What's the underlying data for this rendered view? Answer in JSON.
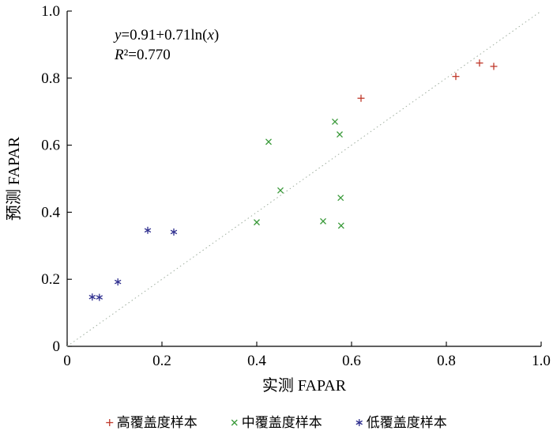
{
  "chart_data": {
    "type": "scatter",
    "title": "",
    "xlabel": "实测 FAPAR",
    "ylabel": "预测 FAPAR",
    "xlim": [
      0,
      1.0
    ],
    "ylim": [
      0,
      1.0
    ],
    "xticks": [
      0,
      0.2,
      0.4,
      0.6,
      0.8,
      1.0
    ],
    "yticks": [
      0,
      0.2,
      0.4,
      0.6,
      0.8,
      1.0
    ],
    "xtick_labels": [
      "0",
      "0.2",
      "0.4",
      "0.6",
      "0.8",
      "1.0"
    ],
    "ytick_labels": [
      "0",
      "0.2",
      "0.4",
      "0.6",
      "0.8",
      "1.0"
    ],
    "grid": false,
    "legend_position": "bottom",
    "annotation": {
      "line1_runs": [
        {
          "t": "y",
          "i": true
        },
        {
          "t": "=0.91+0.71ln(",
          "i": false
        },
        {
          "t": "x",
          "i": true
        },
        {
          "t": ")",
          "i": false
        }
      ],
      "line2_runs": [
        {
          "t": "R",
          "i": true
        },
        {
          "t": "²=0.770",
          "i": false
        }
      ]
    },
    "reference_line": {
      "style": "dotted",
      "from": [
        0,
        0
      ],
      "to": [
        1.0,
        1.0
      ],
      "color": "#9fae9f"
    },
    "series": [
      {
        "name": "高覆盖度样本",
        "marker": "plus",
        "color": "#c0392b",
        "points": [
          [
            0.62,
            0.74
          ],
          [
            0.82,
            0.805
          ],
          [
            0.87,
            0.845
          ],
          [
            0.9,
            0.835
          ]
        ]
      },
      {
        "name": "中覆盖度样本",
        "marker": "x",
        "color": "#3a9a3a",
        "points": [
          [
            0.4,
            0.37
          ],
          [
            0.425,
            0.61
          ],
          [
            0.45,
            0.465
          ],
          [
            0.54,
            0.373
          ],
          [
            0.565,
            0.67
          ],
          [
            0.575,
            0.632
          ],
          [
            0.577,
            0.443
          ],
          [
            0.578,
            0.36
          ]
        ]
      },
      {
        "name": "低覆盖度样本",
        "marker": "asterisk",
        "color": "#2f2f8f",
        "points": [
          [
            0.053,
            0.147
          ],
          [
            0.068,
            0.146
          ],
          [
            0.107,
            0.192
          ],
          [
            0.17,
            0.346
          ],
          [
            0.225,
            0.341
          ]
        ]
      }
    ]
  }
}
